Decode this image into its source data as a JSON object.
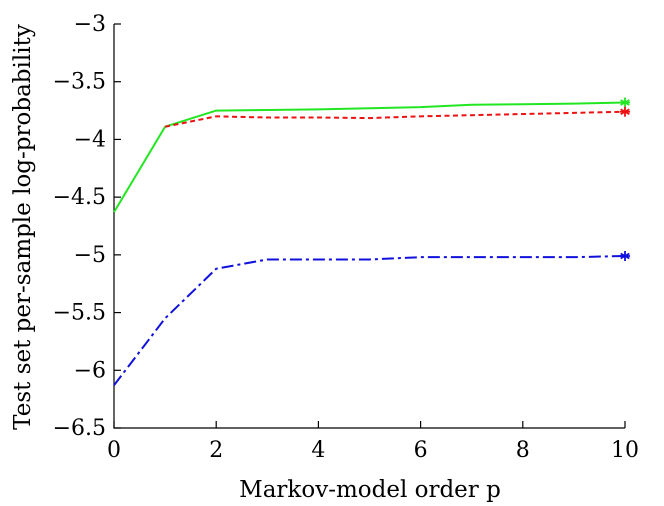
{
  "chart_data": {
    "type": "line",
    "xlabel": "Markov-model order p",
    "ylabel": "Test set per-sample log-probability",
    "xlim": [
      0,
      10
    ],
    "ylim": [
      -6.5,
      -3
    ],
    "xticks": [
      0,
      2,
      4,
      6,
      8,
      10
    ],
    "yticks": [
      -3,
      -3.5,
      -4,
      -4.5,
      -5,
      -5.5,
      -6,
      -6.5
    ],
    "xtick_labels": [
      "0",
      "2",
      "4",
      "6",
      "8",
      "10"
    ],
    "ytick_labels": [
      "−3",
      "−3.5",
      "−4",
      "−4.5",
      "−5",
      "−5.5",
      "−6",
      "−6.5"
    ],
    "grid": false,
    "series": [
      {
        "color": "#22e622",
        "style": "solid",
        "x": [
          0,
          1,
          2,
          3,
          4,
          5,
          6,
          7,
          8,
          9,
          10
        ],
        "y": [
          -4.63,
          -3.89,
          -3.75,
          -3.745,
          -3.74,
          -3.73,
          -3.72,
          -3.7,
          -3.695,
          -3.69,
          -3.68
        ],
        "endpoint_marker": {
          "x": 10,
          "y": -3.68,
          "symbol": "*"
        }
      },
      {
        "color": "#ee1111",
        "style": "dashed",
        "x": [
          1,
          2,
          3,
          4,
          5,
          6,
          7,
          8,
          9,
          10
        ],
        "y": [
          -3.89,
          -3.8,
          -3.81,
          -3.81,
          -3.815,
          -3.8,
          -3.79,
          -3.78,
          -3.77,
          -3.76
        ],
        "endpoint_marker": {
          "x": 10,
          "y": -3.76,
          "symbol": "*"
        }
      },
      {
        "color": "#1111dd",
        "style": "dashdot",
        "x": [
          0,
          1,
          2,
          3,
          4,
          5,
          6,
          7,
          8,
          9,
          10
        ],
        "y": [
          -6.13,
          -5.55,
          -5.12,
          -5.04,
          -5.04,
          -5.04,
          -5.02,
          -5.02,
          -5.02,
          -5.02,
          -5.01
        ],
        "endpoint_marker": {
          "x": 10,
          "y": -5.01,
          "symbol": "*"
        }
      }
    ]
  }
}
